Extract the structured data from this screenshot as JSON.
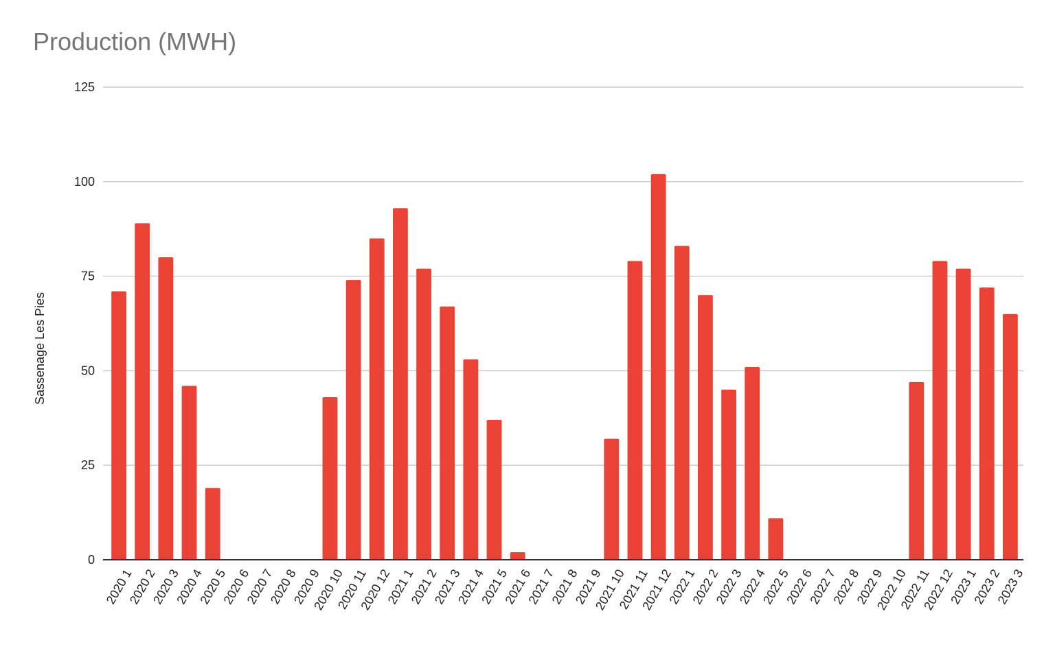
{
  "colors": {
    "bar": "#ea4335",
    "grid": "#cccccc",
    "axis": "#333333",
    "title": "#757575"
  },
  "chart_data": {
    "type": "bar",
    "title": "Production (MWH)",
    "xlabel": "",
    "ylabel": "Sassenage Les Pies",
    "ylim": [
      0,
      125
    ],
    "yticks": [
      0,
      25,
      50,
      75,
      100,
      125
    ],
    "grid": true,
    "legend": "none",
    "categories": [
      "2020 1",
      "2020 2",
      "2020 3",
      "2020 4",
      "2020 5",
      "2020 6",
      "2020 7",
      "2020 8",
      "2020 9",
      "2020 10",
      "2020 11",
      "2020 12",
      "2021 1",
      "2021 2",
      "2021 3",
      "2021 4",
      "2021 5",
      "2021 6",
      "2021 7",
      "2021 8",
      "2021 9",
      "2021 10",
      "2021 11",
      "2021 12",
      "2022 1",
      "2022 2",
      "2022 3",
      "2022 4",
      "2022 5",
      "2022 6",
      "2022 7",
      "2022 8",
      "2022 9",
      "2022 10",
      "2022 11",
      "2022 12",
      "2023 1",
      "2023 2",
      "2023 3"
    ],
    "series": [
      {
        "values": [
          71,
          89,
          80,
          46,
          19,
          0,
          0,
          0,
          0,
          43,
          74,
          85,
          93,
          77,
          67,
          53,
          37,
          2,
          0,
          0,
          0,
          32,
          79,
          102,
          83,
          70,
          45,
          51,
          11,
          0,
          0,
          0,
          0,
          0,
          47,
          79,
          77,
          72,
          65
        ]
      }
    ]
  }
}
